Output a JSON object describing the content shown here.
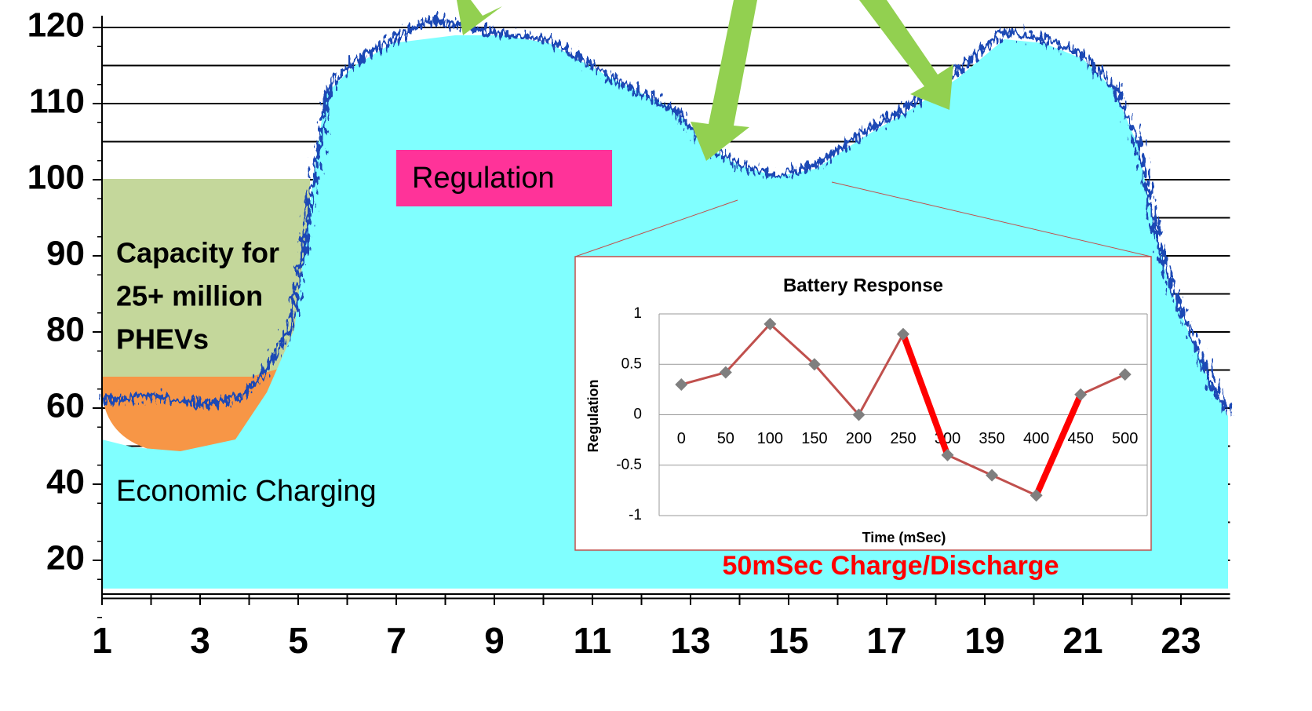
{
  "chart_data": [
    {
      "type": "load-profile",
      "xticks": [
        1,
        3,
        5,
        7,
        9,
        11,
        13,
        15,
        17,
        19,
        21,
        23
      ],
      "xlim": [
        1,
        24
      ],
      "yticks": [
        120,
        110,
        100,
        90,
        80,
        60,
        40,
        20
      ],
      "annotations": {
        "regulation": "Regulation",
        "capacity": [
          "Capacity for",
          "25+ million",
          "PHEVs"
        ],
        "economic": "Economic Charging"
      }
    },
    {
      "type": "line",
      "title": "Battery Response",
      "y_label": "Regulation",
      "x_label": "Time (mSec)",
      "caption": "50mSec Charge/Discharge",
      "categories": [
        "0",
        "50",
        "100",
        "150",
        "200",
        "250",
        "300",
        "350",
        "400",
        "450",
        "500"
      ],
      "values": [
        0.3,
        0.42,
        0.9,
        0.5,
        0,
        0.8,
        -0.4,
        -0.6,
        -0.8,
        0.2,
        0.4
      ],
      "color": "#c0504d",
      "marker_color": "#7f7f7f",
      "highlight_color": "#ff0000",
      "ylim": [
        -1,
        1
      ],
      "yticks": [
        1,
        0.5,
        0,
        -0.5,
        -1
      ],
      "grid": true
    }
  ]
}
